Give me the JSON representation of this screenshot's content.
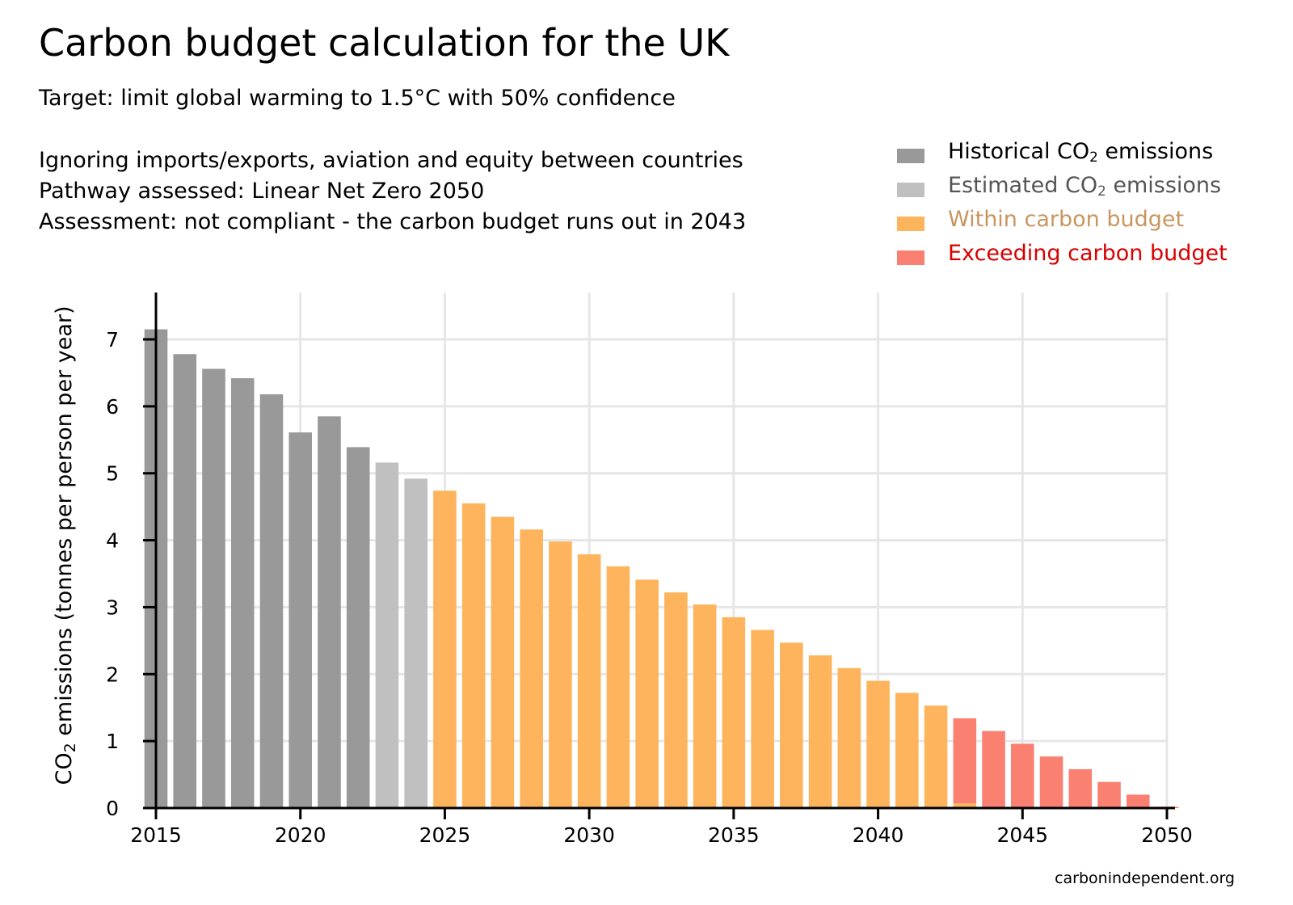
{
  "title": "Carbon budget calculation for the UK",
  "subtitle": "Target: limit global warming to 1.5°C with 50% confidence",
  "notes": [
    "Ignoring imports/exports, aviation and equity between countries",
    "Pathway assessed: Linear Net Zero 2050",
    "Assessment: not compliant - the carbon budget runs out in 2043"
  ],
  "legend": [
    {
      "pre": "Historical CO",
      "sub": "2",
      "post": " emissions",
      "color": "#999999",
      "text_color": "#000000"
    },
    {
      "pre": "Estimated CO",
      "sub": "2",
      "post": " emissions",
      "color": "#c0c0c0",
      "text_color": "#555555"
    },
    {
      "pre": "Within carbon budget",
      "sub": "",
      "post": "",
      "color": "#fdb45c",
      "text_color": "#c8965f"
    },
    {
      "pre": "Exceeding carbon budget",
      "sub": "",
      "post": "",
      "color": "#fa8072",
      "text_color": "#d90000"
    }
  ],
  "ylabel": {
    "pre": "CO",
    "sub": "2",
    "post": " emissions (tonnes per person per year)"
  },
  "footer": "carbonindependent.org",
  "chart_data": {
    "type": "bar",
    "stacked": true,
    "xlim": [
      2015,
      2050
    ],
    "ylim": [
      0,
      7.7
    ],
    "xticks": [
      2015,
      2020,
      2025,
      2030,
      2035,
      2040,
      2045,
      2050
    ],
    "yticks": [
      0,
      1,
      2,
      3,
      4,
      5,
      6,
      7
    ],
    "grid": true,
    "legend_position": "top-right",
    "x": [
      2015,
      2016,
      2017,
      2018,
      2019,
      2020,
      2021,
      2022,
      2023,
      2024,
      2025,
      2026,
      2027,
      2028,
      2029,
      2030,
      2031,
      2032,
      2033,
      2034,
      2035,
      2036,
      2037,
      2038,
      2039,
      2040,
      2041,
      2042,
      2043,
      2044,
      2045,
      2046,
      2047,
      2048,
      2049,
      2050
    ],
    "series": [
      {
        "name": "Historical CO2 emissions",
        "color": "#999999",
        "values": [
          7.15,
          6.78,
          6.56,
          6.42,
          6.18,
          5.61,
          5.85,
          5.39,
          0,
          0,
          0,
          0,
          0,
          0,
          0,
          0,
          0,
          0,
          0,
          0,
          0,
          0,
          0,
          0,
          0,
          0,
          0,
          0,
          0,
          0,
          0,
          0,
          0,
          0,
          0,
          0
        ]
      },
      {
        "name": "Estimated CO2 emissions",
        "color": "#c0c0c0",
        "values": [
          0,
          0,
          0,
          0,
          0,
          0,
          0,
          0,
          5.16,
          4.92,
          0,
          0,
          0,
          0,
          0,
          0,
          0,
          0,
          0,
          0,
          0,
          0,
          0,
          0,
          0,
          0,
          0,
          0,
          0,
          0,
          0,
          0,
          0,
          0,
          0,
          0
        ]
      },
      {
        "name": "Within carbon budget",
        "color": "#fdb45c",
        "values": [
          0,
          0,
          0,
          0,
          0,
          0,
          0,
          0,
          0,
          0,
          4.74,
          4.55,
          4.35,
          4.16,
          3.98,
          3.79,
          3.61,
          3.41,
          3.22,
          3.04,
          2.85,
          2.66,
          2.47,
          2.28,
          2.09,
          1.9,
          1.72,
          1.53,
          0.07,
          0,
          0,
          0,
          0,
          0,
          0,
          0
        ]
      },
      {
        "name": "Exceeding carbon budget",
        "color": "#fa8072",
        "values": [
          0,
          0,
          0,
          0,
          0,
          0,
          0,
          0,
          0,
          0,
          0,
          0,
          0,
          0,
          0,
          0,
          0,
          0,
          0,
          0,
          0,
          0,
          0,
          0,
          0,
          0,
          0,
          0,
          1.27,
          1.15,
          0.96,
          0.77,
          0.58,
          0.39,
          0.2,
          0.02
        ]
      }
    ]
  }
}
